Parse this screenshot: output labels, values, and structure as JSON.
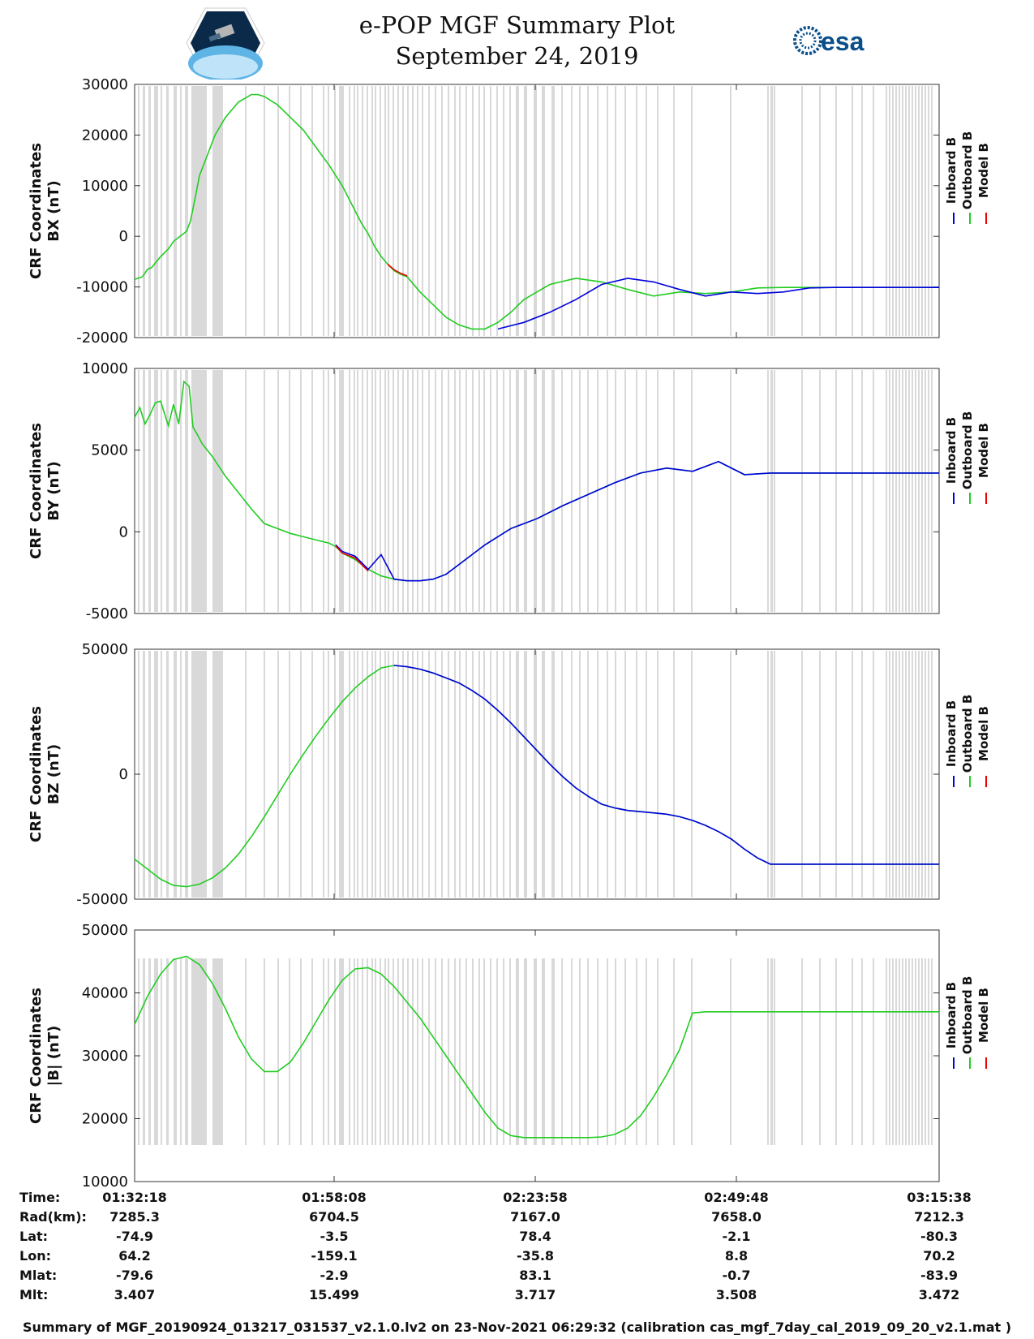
{
  "header": {
    "title": "e-POP MGF Summary Plot",
    "date": "September 24, 2019",
    "logo_left_name": "cassiope-mission-logo",
    "logo_right_text": "esa"
  },
  "colors": {
    "inboard": "#0000dd",
    "outboard": "#22cc22",
    "model": "#ee0000",
    "gap_shade": "#d9d9d9"
  },
  "legend": [
    "Inboard B",
    "Outboard B",
    "Model B"
  ],
  "chart_data": [
    {
      "type": "line",
      "ylabel": [
        "CRF Coordinates",
        "BX (nT)"
      ],
      "ylim": [
        -20000,
        30000
      ],
      "yticks": [
        -20000,
        -10000,
        0,
        10000,
        20000,
        30000
      ],
      "xlim": [
        0,
        6200
      ],
      "series": [
        {
          "name": "Outboard B",
          "x": [
            0,
            60,
            100,
            130,
            200,
            260,
            300,
            350,
            400,
            430,
            470,
            500,
            560,
            620,
            700,
            800,
            900,
            950,
            1000,
            1100,
            1200,
            1300,
            1400,
            1500,
            1600,
            1700,
            1750,
            1800,
            1850,
            1900,
            1950,
            2000,
            2050,
            2100,
            2200,
            2300,
            2400,
            2500,
            2600,
            2700,
            2800,
            2900,
            3000,
            3200,
            3400,
            3600,
            3800,
            4000,
            4200,
            4400,
            4600,
            4800,
            5000,
            5200,
            5400,
            5600,
            5700,
            5760,
            5800,
            5900,
            6000,
            6100,
            6200
          ],
          "y": [
            -8500,
            -8000,
            -6500,
            -6200,
            -4000,
            -2500,
            -1000,
            0,
            1000,
            3000,
            8000,
            12000,
            16000,
            20000,
            23500,
            26500,
            28000,
            28000,
            27600,
            26000,
            23500,
            21000,
            17500,
            14000,
            10000,
            5000,
            2500,
            500,
            -2000,
            -4000,
            -5500,
            -6800,
            -7500,
            -8000,
            -11000,
            -13500,
            -16000,
            -17500,
            -18300,
            -18300,
            -17000,
            -15000,
            -12500,
            -9500,
            -8300,
            -9000,
            -10500,
            -11800,
            -11000,
            -11300,
            -11000,
            -10200,
            -10100,
            -10100,
            -10100,
            -10100,
            -10100,
            -10100,
            -10100,
            -10100,
            -10100,
            -10100,
            -10100
          ]
        },
        {
          "name": "Inboard B",
          "x": [
            2800,
            3000,
            3200,
            3400,
            3600,
            3800,
            4000,
            4200,
            4400,
            4600,
            4800,
            5000,
            5200,
            5400,
            5600,
            5700,
            5760,
            5800,
            5900,
            6000,
            6100,
            6200
          ],
          "y": [
            -18300,
            -17000,
            -15000,
            -12500,
            -9500,
            -8300,
            -9000,
            -10500,
            -11800,
            -11000,
            -11300,
            -11000,
            -10200,
            -10100,
            -10100,
            -10100,
            -10100,
            -10100,
            -10100,
            -10100,
            -10100,
            -10100
          ]
        },
        {
          "name": "Model B",
          "x": [
            1950,
            2000,
            2050,
            2100
          ],
          "y": [
            -5500,
            -6600,
            -7300,
            -7800
          ]
        }
      ]
    },
    {
      "type": "line",
      "ylabel": [
        "CRF Coordinates",
        "BY (nT)"
      ],
      "ylim": [
        -5000,
        10000
      ],
      "yticks": [
        -5000,
        0,
        5000,
        10000
      ],
      "xlim": [
        0,
        6200
      ],
      "series": [
        {
          "name": "Outboard B",
          "x": [
            0,
            40,
            80,
            120,
            160,
            200,
            260,
            300,
            340,
            380,
            420,
            450,
            480,
            520,
            560,
            600,
            700,
            800,
            900,
            1000,
            1100,
            1200,
            1300,
            1400,
            1500,
            1550,
            1600,
            1700,
            1800,
            1900,
            2000,
            2100,
            2200,
            2300,
            2400,
            2500,
            2700,
            2900,
            3100,
            3300,
            3500,
            3700,
            3900,
            4100,
            4300,
            4500,
            4700,
            4900,
            5100,
            5300,
            5500,
            5700,
            5800,
            5900,
            6000,
            6100,
            6200
          ],
          "y": [
            7000,
            7600,
            6600,
            7200,
            7900,
            8000,
            6500,
            7800,
            6600,
            9200,
            8900,
            6400,
            6000,
            5400,
            5000,
            4600,
            3400,
            2400,
            1400,
            500,
            200,
            -100,
            -300,
            -500,
            -700,
            -900,
            -1300,
            -1700,
            -2300,
            -2700,
            -2900,
            -3000,
            -3000,
            -2900,
            -2600,
            -2000,
            -800,
            200,
            800,
            1600,
            2300,
            3000,
            3600,
            3900,
            3700,
            4300,
            3500,
            3600,
            3600,
            3600,
            3600,
            3600,
            3600,
            3600,
            3600,
            3600,
            3600
          ]
        },
        {
          "name": "Inboard B",
          "x": [
            1550,
            1600,
            1700,
            1800,
            1900,
            2000,
            2100,
            2200,
            2300,
            2400,
            2500,
            2700,
            2900,
            3100,
            3300,
            3500,
            3700,
            3900,
            4100,
            4300,
            4500,
            4700,
            4900,
            5100,
            5300,
            5500,
            5700,
            5800,
            5900,
            6000,
            6100,
            6200
          ],
          "y": [
            -800,
            -1200,
            -1500,
            -2300,
            -1400,
            -2900,
            -3000,
            -3000,
            -2900,
            -2600,
            -2000,
            -800,
            200,
            800,
            1600,
            2300,
            3000,
            3600,
            3900,
            3700,
            4300,
            3500,
            3600,
            3600,
            3600,
            3600,
            3600,
            3600,
            3600,
            3600,
            3600,
            3600
          ]
        },
        {
          "name": "Model B",
          "x": [
            1550,
            1600,
            1700,
            1800
          ],
          "y": [
            -850,
            -1300,
            -1600,
            -2400
          ]
        }
      ]
    },
    {
      "type": "line",
      "ylabel": [
        "CRF Coordinates",
        "BZ (nT)"
      ],
      "ylim": [
        -50000,
        50000
      ],
      "yticks": [
        -50000,
        0,
        50000
      ],
      "xlim": [
        0,
        6200
      ],
      "series": [
        {
          "name": "Outboard B",
          "x": [
            0,
            100,
            200,
            300,
            400,
            500,
            600,
            700,
            800,
            900,
            1000,
            1100,
            1200,
            1300,
            1400,
            1500,
            1600,
            1700,
            1800,
            1900,
            2000,
            2100,
            2200,
            2300,
            2400,
            2500,
            2600,
            2700,
            2800,
            2900,
            3000,
            3100,
            3200,
            3300,
            3400,
            3500,
            3600,
            3700,
            3800,
            3900,
            4000,
            4100,
            4200,
            4300,
            4400,
            4500,
            4600,
            4700,
            4800,
            4900,
            5000,
            5100,
            5200,
            5300,
            5400,
            5500,
            5600,
            5700,
            5800,
            5900,
            6000,
            6100,
            6200
          ],
          "y": [
            -34000,
            -38000,
            -42000,
            -44500,
            -45000,
            -44000,
            -41500,
            -37500,
            -32000,
            -25000,
            -17000,
            -8500,
            0,
            8000,
            15500,
            22500,
            29000,
            34500,
            39000,
            42500,
            43500,
            43000,
            42000,
            40500,
            38500,
            36500,
            33500,
            30000,
            25500,
            20500,
            15000,
            9500,
            4000,
            -1000,
            -5500,
            -9000,
            -12000,
            -13500,
            -14500,
            -15000,
            -15500,
            -16000,
            -17000,
            -18500,
            -20500,
            -23000,
            -26000,
            -30000,
            -33500,
            -36000,
            -36000,
            -36000,
            -36000,
            -36000,
            -36000,
            -36000,
            -36000,
            -36000,
            -36000,
            -36000,
            -36000,
            -36000,
            -36000
          ]
        },
        {
          "name": "Inboard B",
          "x": [
            2000,
            2100,
            2200,
            2300,
            2400,
            2500,
            2600,
            2700,
            2800,
            2900,
            3000,
            3100,
            3200,
            3300,
            3400,
            3500,
            3600,
            3700,
            3800,
            3900,
            4000,
            4100,
            4200,
            4300,
            4400,
            4500,
            4600,
            4700,
            4800,
            4900,
            5000,
            5100,
            5200,
            5300,
            5400,
            5500,
            5600,
            5700,
            5800,
            5900,
            6000,
            6100,
            6200
          ],
          "y": [
            43500,
            43000,
            42000,
            40500,
            38500,
            36500,
            33500,
            30000,
            25500,
            20500,
            15000,
            9500,
            4000,
            -1000,
            -5500,
            -9000,
            -12000,
            -13500,
            -14500,
            -15000,
            -15500,
            -16000,
            -17000,
            -18500,
            -20500,
            -23000,
            -26000,
            -30000,
            -33500,
            -36000,
            -36000,
            -36000,
            -36000,
            -36000,
            -36000,
            -36000,
            -36000,
            -36000,
            -36000,
            -36000,
            -36000,
            -36000,
            -36000
          ]
        },
        {
          "name": "Model B",
          "x": [],
          "y": []
        }
      ]
    },
    {
      "type": "line",
      "ylabel": [
        "CRF Coordinates",
        "|B| (nT)"
      ],
      "ylim": [
        10000,
        50000
      ],
      "yticks": [
        10000,
        20000,
        30000,
        40000,
        50000
      ],
      "xlim": [
        0,
        6200
      ],
      "series": [
        {
          "name": "Outboard B",
          "x": [
            0,
            100,
            200,
            300,
            400,
            500,
            600,
            700,
            800,
            900,
            1000,
            1100,
            1200,
            1300,
            1400,
            1500,
            1600,
            1700,
            1800,
            1900,
            2000,
            2100,
            2200,
            2300,
            2400,
            2500,
            2600,
            2700,
            2800,
            2900,
            3000,
            3100,
            3200,
            3300,
            3400,
            3500,
            3600,
            3700,
            3800,
            3900,
            4000,
            4100,
            4200,
            4300,
            4400,
            4500,
            4600,
            4700,
            4800,
            4900,
            5000,
            5100,
            5200,
            5300,
            5400,
            5500,
            5600,
            5700,
            5800,
            5900,
            6000,
            6100,
            6200
          ],
          "y": [
            35000,
            39500,
            43000,
            45300,
            45800,
            44500,
            41500,
            37500,
            33000,
            29500,
            27500,
            27500,
            29000,
            32000,
            35500,
            39000,
            42000,
            43800,
            44000,
            43000,
            41000,
            38500,
            36000,
            33000,
            30000,
            27000,
            24000,
            21000,
            18500,
            17300,
            17000,
            17000,
            17000,
            17000,
            17000,
            17000,
            17100,
            17500,
            18500,
            20500,
            23500,
            27000,
            31000,
            36800,
            37000,
            37000,
            37000,
            37000,
            37000,
            37000,
            37000,
            37000,
            37000,
            37000,
            37000,
            37000,
            37000,
            37000,
            37000,
            37000,
            37000,
            37000,
            37000
          ]
        },
        {
          "name": "Inboard B",
          "x": [],
          "y": []
        },
        {
          "name": "Model B",
          "x": [],
          "y": []
        }
      ]
    }
  ],
  "x_axis": {
    "tick_labels": [
      "01:32:18",
      "01:58:08",
      "02:23:58",
      "02:49:48",
      "03:15:38"
    ]
  },
  "orbit_table": {
    "rows": [
      {
        "label": "Time:",
        "values": [
          "01:32:18",
          "01:58:08",
          "02:23:58",
          "02:49:48",
          "03:15:38"
        ]
      },
      {
        "label": "Rad(km):",
        "values": [
          "7285.3",
          "6704.5",
          "7167.0",
          "7658.0",
          "7212.3"
        ]
      },
      {
        "label": "Lat:",
        "values": [
          "-74.9",
          "-3.5",
          "78.4",
          "-2.1",
          "-80.3"
        ]
      },
      {
        "label": "Lon:",
        "values": [
          "64.2",
          "-159.1",
          "-35.8",
          "8.8",
          "70.2"
        ]
      },
      {
        "label": "Mlat:",
        "values": [
          "-79.6",
          "-2.9",
          "83.1",
          "-0.7",
          "-83.9"
        ]
      },
      {
        "label": "Mlt:",
        "values": [
          "3.407",
          "15.499",
          "3.717",
          "3.508",
          "3.472"
        ]
      }
    ]
  },
  "footer": "Summary of MGF_20190924_013217_031537_v2.1.0.lv2 on 23-Nov-2021 06:29:32 (calibration cas_mgf_7day_cal_2019_09_20_v2.1.mat )"
}
